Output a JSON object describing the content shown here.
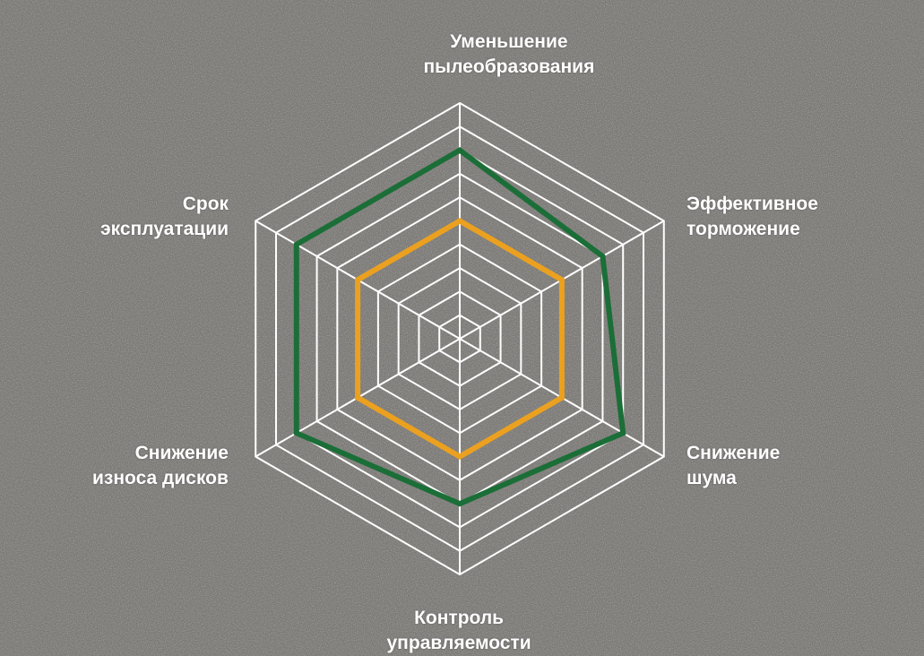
{
  "chart_data": {
    "type": "radar",
    "categories": [
      "Уменьшение\nпылеобразования",
      "Эффективное\nторможение",
      "Снижение\nшума",
      "Контроль\nуправляемости",
      "Снижение\nизноса дисков",
      "Срок\nэксплуатации"
    ],
    "series": [
      {
        "color": "#1b6e37",
        "values": [
          8,
          7,
          8,
          7,
          8,
          8
        ]
      },
      {
        "color": "#eba11f",
        "values": [
          5,
          5,
          5,
          5,
          5,
          5
        ]
      }
    ],
    "ylim": [
      0,
      10
    ],
    "yticks": [
      1,
      2,
      3,
      4,
      5,
      6,
      7,
      8,
      9,
      10
    ],
    "grid": true,
    "grid_color": "#ffffff"
  }
}
